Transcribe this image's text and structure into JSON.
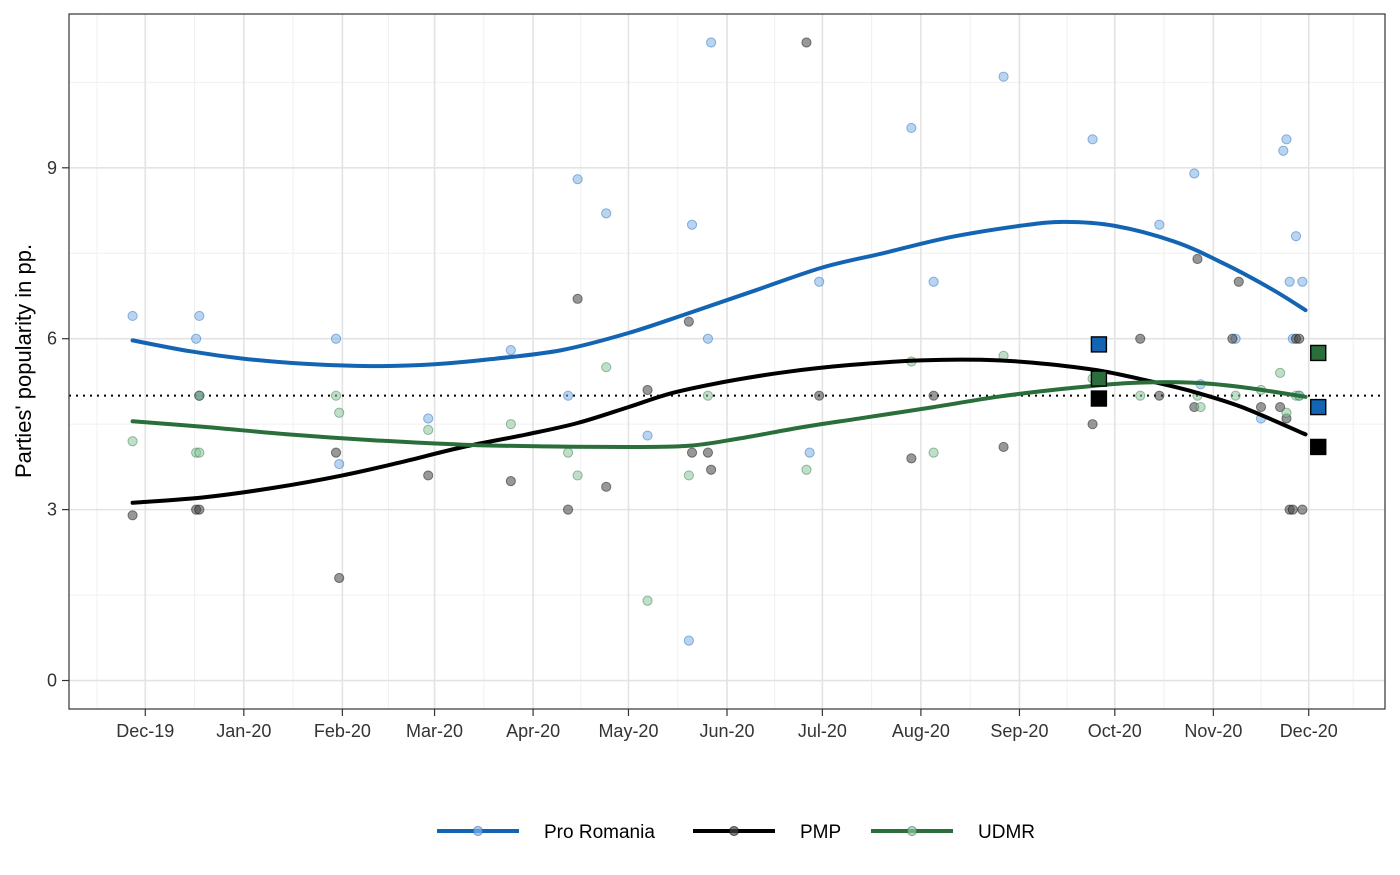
{
  "chart_data": {
    "type": "scatter",
    "title": "",
    "xlabel": "",
    "ylabel": "Parties' popularity in pp.",
    "x_axis": {
      "type": "date",
      "range": [
        "2019-11-07",
        "2020-12-25"
      ],
      "ticks": [
        {
          "date": "2019-12-01",
          "label": "Dec-19"
        },
        {
          "date": "2020-01-01",
          "label": "Jan-20"
        },
        {
          "date": "2020-02-01",
          "label": "Feb-20"
        },
        {
          "date": "2020-03-01",
          "label": "Mar-20"
        },
        {
          "date": "2020-04-01",
          "label": "Apr-20"
        },
        {
          "date": "2020-05-01",
          "label": "May-20"
        },
        {
          "date": "2020-06-01",
          "label": "Jun-20"
        },
        {
          "date": "2020-07-01",
          "label": "Jul-20"
        },
        {
          "date": "2020-08-01",
          "label": "Aug-20"
        },
        {
          "date": "2020-09-01",
          "label": "Sep-20"
        },
        {
          "date": "2020-10-01",
          "label": "Oct-20"
        },
        {
          "date": "2020-11-01",
          "label": "Nov-20"
        },
        {
          "date": "2020-12-01",
          "label": "Dec-20"
        }
      ]
    },
    "y_axis": {
      "range": [
        -0.5,
        11.7
      ],
      "ticks": [
        0,
        3,
        6,
        9
      ]
    },
    "grid": true,
    "legend_position": "bottom",
    "reference_line": {
      "y": 5,
      "style": "dotted"
    },
    "series": [
      {
        "name": "Pro Romania",
        "color": "#1464b4",
        "point_color": "#7eb0e6",
        "points": [
          [
            "2019-11-27",
            6.4
          ],
          [
            "2019-12-17",
            6.0
          ],
          [
            "2019-12-18",
            6.4
          ],
          [
            "2019-12-18",
            5.0
          ],
          [
            "2020-01-30",
            6.0
          ],
          [
            "2020-01-31",
            3.8
          ],
          [
            "2020-02-28",
            4.6
          ],
          [
            "2020-03-25",
            5.8
          ],
          [
            "2020-04-12",
            5.0
          ],
          [
            "2020-04-15",
            8.8
          ],
          [
            "2020-04-24",
            8.2
          ],
          [
            "2020-05-07",
            4.3
          ],
          [
            "2020-05-20",
            0.7
          ],
          [
            "2020-05-21",
            8.0
          ],
          [
            "2020-05-26",
            6.0
          ],
          [
            "2020-05-27",
            11.2
          ],
          [
            "2020-06-30",
            7.0
          ],
          [
            "2020-06-27",
            4.0
          ],
          [
            "2020-07-29",
            9.7
          ],
          [
            "2020-08-05",
            7.0
          ],
          [
            "2020-08-27",
            10.6
          ],
          [
            "2020-09-24",
            9.5
          ],
          [
            "2020-10-15",
            8.0
          ],
          [
            "2020-10-26",
            8.9
          ],
          [
            "2020-10-28",
            5.2
          ],
          [
            "2020-11-08",
            6.0
          ],
          [
            "2020-11-16",
            4.6
          ],
          [
            "2020-11-23",
            9.3
          ],
          [
            "2020-11-24",
            9.5
          ],
          [
            "2020-11-25",
            7.0
          ],
          [
            "2020-11-27",
            7.8
          ],
          [
            "2020-11-26",
            6.0
          ],
          [
            "2020-11-29",
            7.0
          ],
          [
            "2020-11-28",
            5.0
          ]
        ],
        "trend": [
          [
            "2019-11-27",
            5.97
          ],
          [
            "2019-12-15",
            5.78
          ],
          [
            "2020-01-01",
            5.65
          ],
          [
            "2020-01-20",
            5.56
          ],
          [
            "2020-02-10",
            5.52
          ],
          [
            "2020-03-01",
            5.55
          ],
          [
            "2020-03-20",
            5.65
          ],
          [
            "2020-04-10",
            5.8
          ],
          [
            "2020-05-01",
            6.1
          ],
          [
            "2020-05-20",
            6.45
          ],
          [
            "2020-06-10",
            6.85
          ],
          [
            "2020-07-01",
            7.25
          ],
          [
            "2020-07-20",
            7.5
          ],
          [
            "2020-08-10",
            7.78
          ],
          [
            "2020-09-01",
            7.98
          ],
          [
            "2020-09-15",
            8.05
          ],
          [
            "2020-10-01",
            7.98
          ],
          [
            "2020-10-20",
            7.7
          ],
          [
            "2020-11-05",
            7.3
          ],
          [
            "2020-11-20",
            6.85
          ],
          [
            "2020-11-30",
            6.5
          ]
        ],
        "final_marker": [
          [
            "2020-09-26",
            5.9
          ],
          [
            "2020-12-04",
            4.8
          ]
        ]
      },
      {
        "name": "PMP",
        "color": "#000000",
        "point_color": "#444444",
        "points": [
          [
            "2019-11-27",
            2.9
          ],
          [
            "2019-12-18",
            5.0
          ],
          [
            "2019-12-17",
            3.0
          ],
          [
            "2019-12-18",
            3.0
          ],
          [
            "2020-01-30",
            4.0
          ],
          [
            "2020-01-31",
            1.8
          ],
          [
            "2020-02-28",
            3.6
          ],
          [
            "2020-03-25",
            3.5
          ],
          [
            "2020-04-12",
            3.0
          ],
          [
            "2020-04-15",
            6.7
          ],
          [
            "2020-04-24",
            3.4
          ],
          [
            "2020-05-07",
            5.1
          ],
          [
            "2020-05-20",
            6.3
          ],
          [
            "2020-05-21",
            4.0
          ],
          [
            "2020-05-26",
            4.0
          ],
          [
            "2020-05-27",
            3.7
          ],
          [
            "2020-06-26",
            11.2
          ],
          [
            "2020-06-30",
            5.0
          ],
          [
            "2020-07-29",
            3.9
          ],
          [
            "2020-08-05",
            5.0
          ],
          [
            "2020-08-27",
            4.1
          ],
          [
            "2020-09-24",
            4.5
          ],
          [
            "2020-10-09",
            6.0
          ],
          [
            "2020-10-15",
            5.0
          ],
          [
            "2020-10-26",
            4.8
          ],
          [
            "2020-10-27",
            7.4
          ],
          [
            "2020-11-07",
            6.0
          ],
          [
            "2020-11-09",
            7.0
          ],
          [
            "2020-11-16",
            4.8
          ],
          [
            "2020-11-22",
            4.8
          ],
          [
            "2020-11-24",
            4.6
          ],
          [
            "2020-11-25",
            3.0
          ],
          [
            "2020-11-26",
            3.0
          ],
          [
            "2020-11-27",
            6.0
          ],
          [
            "2020-11-29",
            3.0
          ],
          [
            "2020-11-28",
            6.0
          ]
        ],
        "trend": [
          [
            "2019-11-27",
            3.12
          ],
          [
            "2019-12-20",
            3.22
          ],
          [
            "2020-01-10",
            3.38
          ],
          [
            "2020-02-01",
            3.6
          ],
          [
            "2020-02-20",
            3.84
          ],
          [
            "2020-03-10",
            4.1
          ],
          [
            "2020-03-30",
            4.32
          ],
          [
            "2020-04-15",
            4.52
          ],
          [
            "2020-05-01",
            4.8
          ],
          [
            "2020-05-15",
            5.05
          ],
          [
            "2020-06-01",
            5.25
          ],
          [
            "2020-06-20",
            5.42
          ],
          [
            "2020-07-10",
            5.54
          ],
          [
            "2020-08-01",
            5.62
          ],
          [
            "2020-08-20",
            5.63
          ],
          [
            "2020-09-05",
            5.58
          ],
          [
            "2020-09-25",
            5.45
          ],
          [
            "2020-10-10",
            5.28
          ],
          [
            "2020-10-25",
            5.08
          ],
          [
            "2020-11-10",
            4.8
          ],
          [
            "2020-11-30",
            4.32
          ]
        ],
        "final_marker": [
          [
            "2020-09-26",
            4.95
          ],
          [
            "2020-12-04",
            4.1
          ]
        ]
      },
      {
        "name": "UDMR",
        "color": "#2a6e3b",
        "point_color": "#8cc59c",
        "points": [
          [
            "2019-11-27",
            4.2
          ],
          [
            "2019-12-17",
            4.0
          ],
          [
            "2019-12-18",
            4.0
          ],
          [
            "2019-12-18",
            5.0
          ],
          [
            "2020-01-30",
            5.0
          ],
          [
            "2020-01-31",
            4.7
          ],
          [
            "2020-02-28",
            4.4
          ],
          [
            "2020-03-25",
            4.5
          ],
          [
            "2020-04-12",
            4.0
          ],
          [
            "2020-04-15",
            3.6
          ],
          [
            "2020-04-24",
            5.5
          ],
          [
            "2020-05-07",
            1.4
          ],
          [
            "2020-05-20",
            3.6
          ],
          [
            "2020-05-26",
            5.0
          ],
          [
            "2020-06-26",
            3.7
          ],
          [
            "2020-07-29",
            5.6
          ],
          [
            "2020-08-05",
            4.0
          ],
          [
            "2020-08-27",
            5.7
          ],
          [
            "2020-09-24",
            5.3
          ],
          [
            "2020-10-09",
            5.0
          ],
          [
            "2020-10-27",
            5.0
          ],
          [
            "2020-10-28",
            4.8
          ],
          [
            "2020-11-08",
            5.0
          ],
          [
            "2020-11-16",
            5.1
          ],
          [
            "2020-11-22",
            5.4
          ],
          [
            "2020-11-24",
            4.7
          ],
          [
            "2020-11-27",
            5.0
          ],
          [
            "2020-11-28",
            5.0
          ]
        ],
        "trend": [
          [
            "2019-11-27",
            4.55
          ],
          [
            "2019-12-20",
            4.45
          ],
          [
            "2020-01-15",
            4.32
          ],
          [
            "2020-02-10",
            4.22
          ],
          [
            "2020-03-10",
            4.14
          ],
          [
            "2020-04-05",
            4.11
          ],
          [
            "2020-05-01",
            4.1
          ],
          [
            "2020-05-20",
            4.12
          ],
          [
            "2020-06-05",
            4.25
          ],
          [
            "2020-06-25",
            4.45
          ],
          [
            "2020-07-15",
            4.62
          ],
          [
            "2020-08-05",
            4.8
          ],
          [
            "2020-08-25",
            4.98
          ],
          [
            "2020-09-15",
            5.12
          ],
          [
            "2020-10-05",
            5.22
          ],
          [
            "2020-10-25",
            5.23
          ],
          [
            "2020-11-10",
            5.15
          ],
          [
            "2020-11-30",
            4.98
          ]
        ],
        "final_marker": [
          [
            "2020-09-26",
            5.3
          ],
          [
            "2020-12-04",
            5.75
          ]
        ]
      }
    ]
  }
}
